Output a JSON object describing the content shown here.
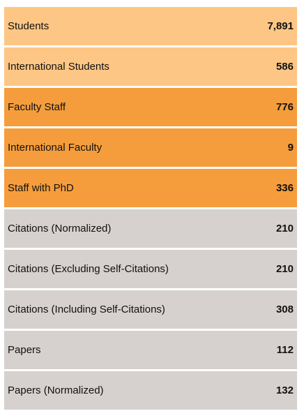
{
  "stats": [
    {
      "label": "Students",
      "value": "7,891",
      "color": "#fec684"
    },
    {
      "label": "International Students",
      "value": "586",
      "color": "#fec684"
    },
    {
      "label": "Faculty Staff",
      "value": "776",
      "color": "#f59d3c"
    },
    {
      "label": "International Faculty",
      "value": "9",
      "color": "#f59d3c"
    },
    {
      "label": "Staff with PhD",
      "value": "336",
      "color": "#f59d3c"
    },
    {
      "label": "Citations (Normalized)",
      "value": "210",
      "color": "#d6d0ce"
    },
    {
      "label": "Citations (Excluding Self-Citations)",
      "value": "210",
      "color": "#d6d0ce"
    },
    {
      "label": "Citations (Including Self-Citations)",
      "value": "308",
      "color": "#d6d0ce"
    },
    {
      "label": "Papers",
      "value": "112",
      "color": "#d6d0ce"
    },
    {
      "label": "Papers (Normalized)",
      "value": "132",
      "color": "#d6d0ce"
    }
  ]
}
